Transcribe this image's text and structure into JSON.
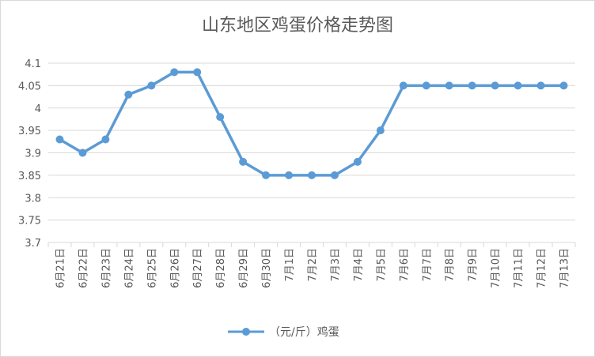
{
  "chart_data": {
    "type": "line",
    "title": "山东地区鸡蛋价格走势图",
    "categories": [
      "6月21日",
      "6月22日",
      "6月23日",
      "6月24日",
      "6月25日",
      "6月26日",
      "6月27日",
      "6月28日",
      "6月29日",
      "6月30日",
      "7月1日",
      "7月2日",
      "7月3日",
      "7月4日",
      "7月5日",
      "7月6日",
      "7月7日",
      "7月8日",
      "7月9日",
      "7月10日",
      "7月11日",
      "7月12日",
      "7月13日"
    ],
    "series": [
      {
        "name": "（元/斤）鸡蛋",
        "values": [
          3.93,
          3.9,
          3.93,
          4.03,
          4.05,
          4.08,
          4.08,
          3.98,
          3.88,
          3.85,
          3.85,
          3.85,
          3.85,
          3.88,
          3.95,
          4.05,
          4.05,
          4.05,
          4.05,
          4.05,
          4.05,
          4.05,
          4.05
        ],
        "color": "#5b9bd5"
      }
    ],
    "ylim": [
      3.7,
      4.1
    ],
    "yticks": [
      "3.7",
      "3.75",
      "3.8",
      "3.85",
      "3.9",
      "3.95",
      "4",
      "4.05",
      "4.1"
    ],
    "xlabel": "",
    "ylabel": "",
    "grid": true,
    "legend": "bottom"
  }
}
